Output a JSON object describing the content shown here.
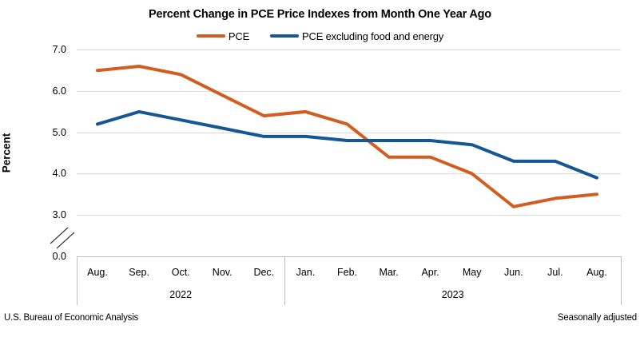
{
  "title": "Percent Change in PCE Price Indexes from Month One Year Ago",
  "legend": {
    "items": [
      {
        "label": "PCE",
        "color": "#d15e20"
      },
      {
        "label": "PCE excluding food and energy",
        "color": "#155694"
      }
    ]
  },
  "y_axis": {
    "label": "Percent",
    "ticks": [
      "7.0",
      "6.0",
      "5.0",
      "4.0",
      "3.0"
    ],
    "break_tick_label": "0.0"
  },
  "footer": {
    "left": "U.S. Bureau of Economic Analysis",
    "right": "Seasonally adjusted"
  },
  "chart_data": {
    "type": "line",
    "title": "Percent Change in PCE Price Indexes from Month One Year Ago",
    "ylabel": "Percent",
    "categories": [
      "Aug.",
      "Sep.",
      "Oct.",
      "Nov.",
      "Dec.",
      "Jan.",
      "Feb.",
      "Mar.",
      "Apr.",
      "May",
      "Jun.",
      "Jul.",
      "Aug."
    ],
    "year_groups": [
      {
        "label": "2022",
        "from": 0,
        "to": 4
      },
      {
        "label": "2023",
        "from": 5,
        "to": 12
      }
    ],
    "series": [
      {
        "name": "PCE",
        "color": "#d15e20",
        "values": [
          6.5,
          6.6,
          6.4,
          5.9,
          5.4,
          5.5,
          5.2,
          4.4,
          4.4,
          4.0,
          3.2,
          3.4,
          3.5
        ]
      },
      {
        "name": "PCE excluding food and energy",
        "color": "#155694",
        "values": [
          5.2,
          5.5,
          5.3,
          5.1,
          4.9,
          4.9,
          4.8,
          4.8,
          4.8,
          4.7,
          4.3,
          4.3,
          3.9
        ]
      }
    ],
    "y_ticks": [
      7.0,
      6.0,
      5.0,
      4.0,
      3.0
    ],
    "ylim_displayed": [
      3.0,
      7.0
    ],
    "axis_break_to_zero": true,
    "grid": "horizontal",
    "legend_position": "top",
    "annotations": [
      "Seasonally adjusted"
    ],
    "source": "U.S. Bureau of Economic Analysis"
  }
}
